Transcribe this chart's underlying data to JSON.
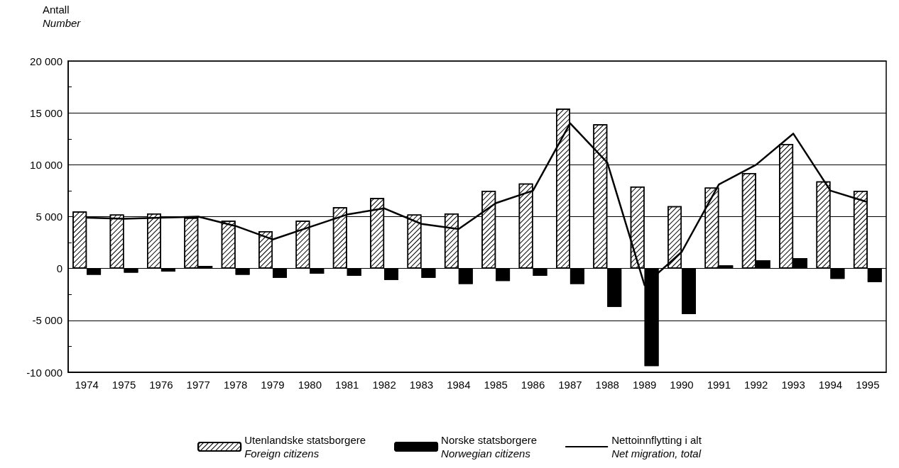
{
  "chart_data": {
    "type": "bar",
    "ylabel": "Antall\nNumber",
    "categories": [
      "1974",
      "1975",
      "1976",
      "1977",
      "1978",
      "1979",
      "1980",
      "1981",
      "1982",
      "1983",
      "1984",
      "1985",
      "1986",
      "1987",
      "1988",
      "1989",
      "1990",
      "1991",
      "1992",
      "1993",
      "1994",
      "1995"
    ],
    "series": [
      {
        "name": "Utenlandske statsborgere\nForeign citizens",
        "color": "#ffffff",
        "values": [
          5500,
          5200,
          5300,
          4900,
          4600,
          3600,
          4600,
          5900,
          6800,
          5200,
          5300,
          7500,
          8200,
          15400,
          13900,
          7900,
          6000,
          7800,
          9200,
          12000,
          8400,
          7500
        ]
      },
      {
        "name": "Norske statsborgere\nNorwegian citizens",
        "color": "#000000",
        "values": [
          -600,
          -400,
          -300,
          250,
          -600,
          -900,
          -500,
          -700,
          -1100,
          -900,
          -1500,
          -1200,
          -700,
          -1500,
          -3700,
          -9400,
          -4400,
          300,
          800,
          1000,
          -1000,
          -1300
        ]
      },
      {
        "name": "Nettoinnflytting i alt\nNet migration, total",
        "type": "line",
        "color": "#000000",
        "values": [
          4900,
          4800,
          4900,
          5000,
          4100,
          2800,
          4000,
          5200,
          5800,
          4300,
          3800,
          6300,
          7500,
          14000,
          10200,
          -1600,
          1600,
          8100,
          10000,
          13000,
          7500,
          6400
        ]
      }
    ],
    "ylim": [
      -10000,
      20000
    ],
    "yticks": [
      {
        "value": -10000,
        "label": "-10 000"
      },
      {
        "value": -7500,
        "label": null
      },
      {
        "value": -5000,
        "label": "-5 000"
      },
      {
        "value": -2500,
        "label": null
      },
      0,
      {
        "value": 2500,
        "label": null
      },
      {
        "value": 5000,
        "label": "5 000"
      },
      {
        "value": 7500,
        "label": null
      },
      {
        "value": 10000,
        "label": "10 000"
      },
      {
        "value": 12500,
        "label": null
      },
      {
        "value": 15000,
        "label": "15 000"
      },
      {
        "value": 17500,
        "label": null
      },
      {
        "value": 20000,
        "label": "20 000"
      }
    ],
    "grid": "y",
    "legend": "bottom",
    "marker": "none",
    "line_style": "solid"
  }
}
